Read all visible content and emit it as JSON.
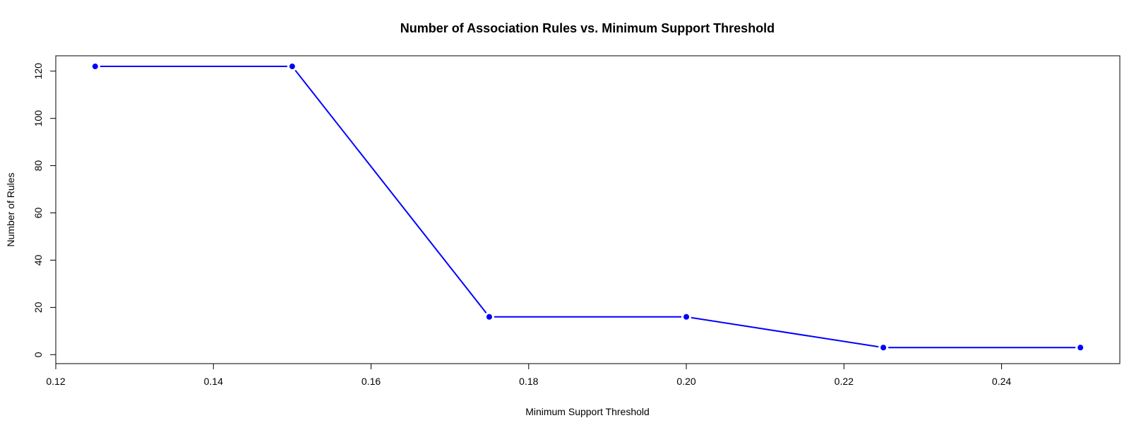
{
  "chart_data": {
    "type": "line",
    "title": "Number of Association Rules vs. Minimum Support Threshold",
    "xlabel": "Minimum Support Threshold",
    "ylabel": "Number of Rules",
    "x": [
      0.125,
      0.15,
      0.175,
      0.2,
      0.225,
      0.25
    ],
    "series": [
      {
        "values": [
          122,
          122,
          16,
          16,
          3,
          3
        ],
        "color": "#0000ff"
      }
    ],
    "xticks": [
      "0.12",
      "0.14",
      "0.16",
      "0.18",
      "0.20",
      "0.22",
      "0.24"
    ],
    "yticks": [
      "0",
      "20",
      "40",
      "60",
      "80",
      "100",
      "120"
    ],
    "xlim": [
      0.12,
      0.255
    ],
    "ylim": [
      -3.8,
      126.5
    ],
    "grid": false,
    "legend": "none",
    "line_style": "both",
    "marker": "filled-circle"
  }
}
